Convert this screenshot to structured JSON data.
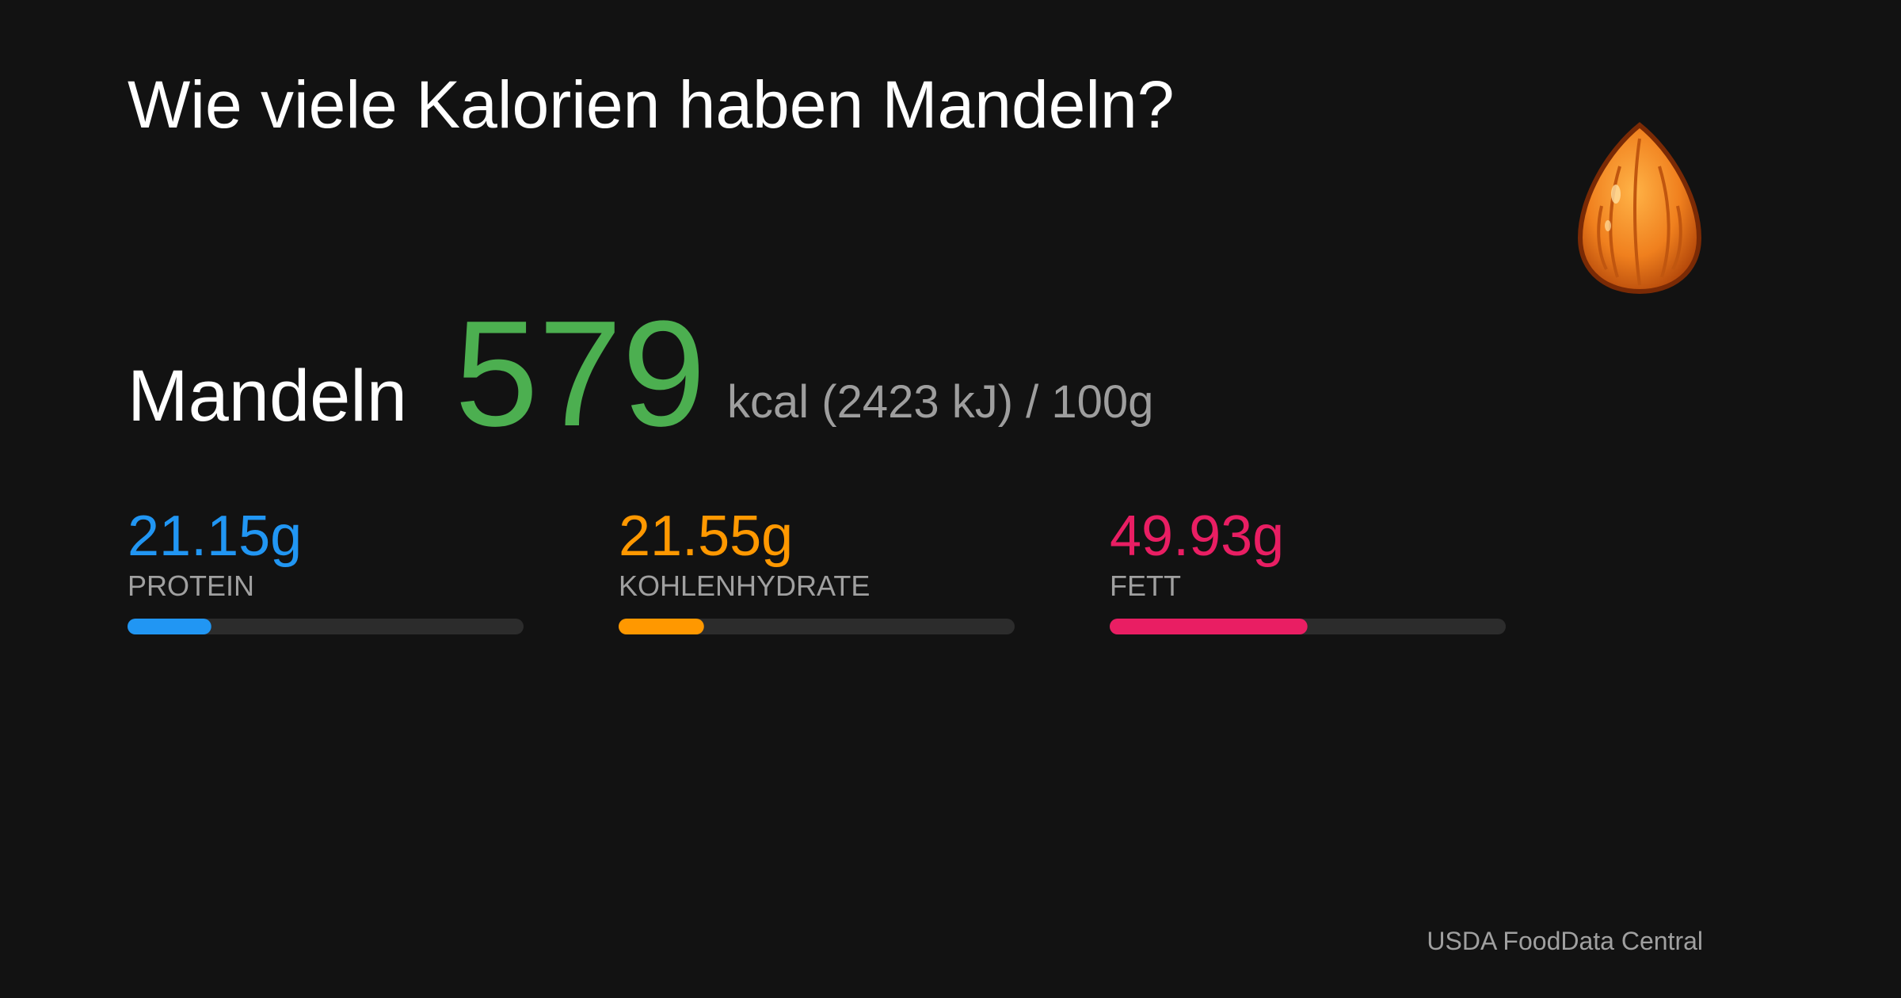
{
  "title": "Wie viele Kalorien haben Mandeln?",
  "food": {
    "name": "Mandeln",
    "kcal": 579,
    "kcal_color": "#4caf50",
    "unit_text": "kcal (2423 kJ) / 100g"
  },
  "macros": [
    {
      "value": 21.15,
      "value_label": "21.15g",
      "name": "PROTEIN",
      "color": "#2196f3"
    },
    {
      "value": 21.55,
      "value_label": "21.55g",
      "name": "KOHLENHYDRATE",
      "color": "#ff9800"
    },
    {
      "value": 49.93,
      "value_label": "49.93g",
      "name": "FETT",
      "color": "#e91e63"
    }
  ],
  "source": "USDA FoodData Central"
}
